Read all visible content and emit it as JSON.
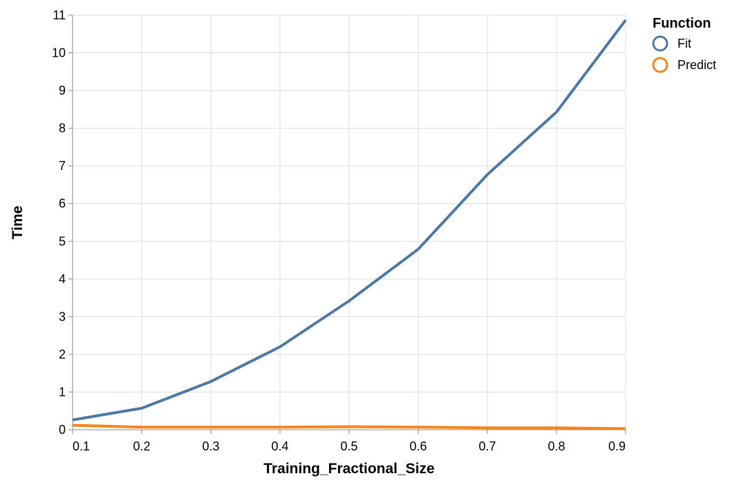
{
  "chart_data": {
    "type": "line",
    "title": "",
    "xlabel": "Training_Fractional_Size",
    "ylabel": "Time",
    "xlim": [
      0.1,
      0.9
    ],
    "ylim": [
      0,
      11
    ],
    "x_ticks": [
      "0.1",
      "0.2",
      "0.3",
      "0.4",
      "0.5",
      "0.6",
      "0.7",
      "0.8",
      "0.9"
    ],
    "y_ticks": [
      "0",
      "1",
      "2",
      "3",
      "4",
      "5",
      "6",
      "7",
      "8",
      "9",
      "10",
      "11"
    ],
    "grid": true,
    "legend": {
      "title": "Function",
      "position": "top-right"
    },
    "x": [
      0.1,
      0.2,
      0.3,
      0.4,
      0.5,
      0.6,
      0.7,
      0.8,
      0.9
    ],
    "series": [
      {
        "name": "Fit",
        "color": "#4c78a8",
        "values": [
          0.26,
          0.57,
          1.28,
          2.2,
          3.42,
          4.79,
          6.77,
          8.43,
          10.87
        ]
      },
      {
        "name": "Predict",
        "color": "#f58518",
        "values": [
          0.12,
          0.07,
          0.07,
          0.07,
          0.08,
          0.07,
          0.05,
          0.05,
          0.03
        ]
      }
    ]
  }
}
